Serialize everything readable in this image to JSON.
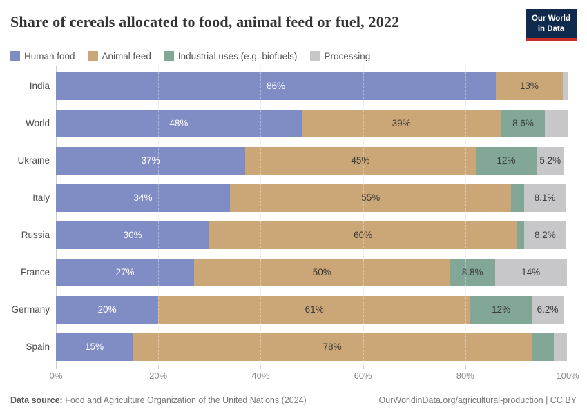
{
  "header": {
    "title": "Share of cereals allocated to food, animal feed or fuel, 2022",
    "logo_line1": "Our World",
    "logo_line2": "in Data",
    "logo_bg_color": "#0f2a4d",
    "logo_accent_color": "#c62d29"
  },
  "legend": {
    "items": [
      {
        "key": "human-food",
        "label": "Human food",
        "color": "#808dc4"
      },
      {
        "key": "animal-feed",
        "label": "Animal feed",
        "color": "#cba676"
      },
      {
        "key": "industrial-uses",
        "label": "Industrial uses (e.g. biofuels)",
        "color": "#82a796"
      },
      {
        "key": "processing",
        "label": "Processing",
        "color": "#c7c7c9"
      }
    ]
  },
  "chart_data": {
    "type": "bar",
    "stacked": true,
    "orientation": "horizontal",
    "title": "Share of cereals allocated to food, animal feed or fuel, 2022",
    "xlabel": "",
    "xlim": [
      0,
      100
    ],
    "x_ticks": [
      "0%",
      "20%",
      "40%",
      "60%",
      "80%",
      "100%"
    ],
    "x_tick_values": [
      0,
      20,
      40,
      60,
      80,
      100
    ],
    "grid": "dashed-vertical",
    "legend_position": "top",
    "series_names": [
      "Human food",
      "Animal feed",
      "Industrial uses (e.g. biofuels)",
      "Processing"
    ],
    "categories": [
      "India",
      "World",
      "Ukraine",
      "Italy",
      "Russia",
      "France",
      "Germany",
      "Spain"
    ],
    "rows": [
      {
        "category": "India",
        "values": [
          86,
          13,
          0,
          1.0
        ],
        "labels": [
          "86%",
          "13%",
          "",
          ""
        ]
      },
      {
        "category": "World",
        "values": [
          48,
          39,
          8.6,
          4.4
        ],
        "labels": [
          "48%",
          "39%",
          "8.6%",
          ""
        ]
      },
      {
        "category": "Ukraine",
        "values": [
          37,
          45,
          12,
          5.2
        ],
        "labels": [
          "37%",
          "45%",
          "12%",
          "5.2%"
        ]
      },
      {
        "category": "Italy",
        "values": [
          34,
          55,
          2.5,
          8.1
        ],
        "labels": [
          "34%",
          "55%",
          "",
          "8.1%"
        ]
      },
      {
        "category": "Russia",
        "values": [
          30,
          60,
          1.5,
          8.2
        ],
        "labels": [
          "30%",
          "60%",
          "",
          "8.2%"
        ]
      },
      {
        "category": "France",
        "values": [
          27,
          50,
          8.8,
          14
        ],
        "labels": [
          "27%",
          "50%",
          "8.8%",
          "14%"
        ]
      },
      {
        "category": "Germany",
        "values": [
          20,
          61,
          12,
          6.2
        ],
        "labels": [
          "20%",
          "61%",
          "12%",
          "6.2%"
        ]
      },
      {
        "category": "Spain",
        "values": [
          15,
          78,
          4.3,
          2.6
        ],
        "labels": [
          "15%",
          "78%",
          "",
          ""
        ]
      }
    ]
  },
  "footer": {
    "source_label": "Data source:",
    "source_text": " Food and Agriculture Organization of the United Nations (2024)",
    "right_text": "OurWorldinData.org/agricultural-production | CC BY"
  }
}
